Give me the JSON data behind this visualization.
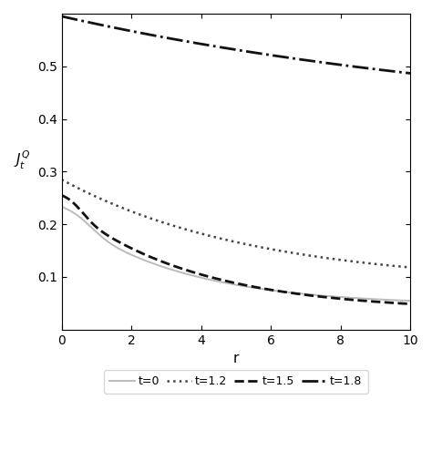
{
  "title": "",
  "xlabel": "r",
  "ylabel": "$J_t^Q$",
  "xlim": [
    0,
    10
  ],
  "ylim": [
    0,
    0.6
  ],
  "yticks": [
    0.1,
    0.2,
    0.3,
    0.4,
    0.5
  ],
  "xticks": [
    0,
    2,
    4,
    6,
    8,
    10
  ],
  "curves": [
    {
      "label": "t=0",
      "style": "solid",
      "color": "#bbbbbb",
      "linewidth": 1.4
    },
    {
      "label": "t=1.2",
      "style": "dotted",
      "color": "#444444",
      "linewidth": 1.8
    },
    {
      "label": "t=1.5",
      "style": "dashed",
      "color": "#111111",
      "linewidth": 2.0
    },
    {
      "label": "t=1.8",
      "style": "dashdot",
      "color": "#111111",
      "linewidth": 2.0
    }
  ],
  "legend_fontsize": 9,
  "background_color": "#ffffff"
}
